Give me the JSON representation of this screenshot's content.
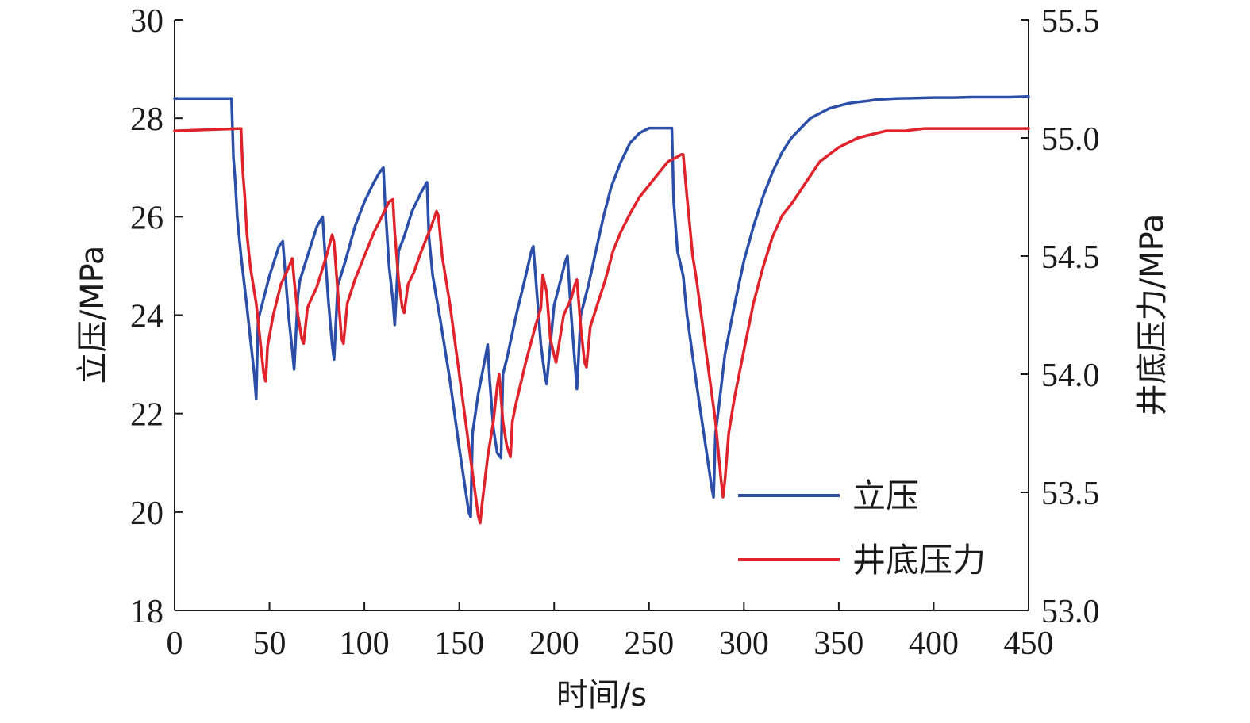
{
  "chart_data": {
    "type": "line",
    "xlabel": "时间/s",
    "ylabel_left": "立压/MPa",
    "ylabel_right": "井底压力/MPa",
    "xlim": [
      0,
      450
    ],
    "ylim_left": [
      18,
      30
    ],
    "ylim_right": [
      53.0,
      55.5
    ],
    "x_ticks": [
      "0",
      "50",
      "100",
      "150",
      "200",
      "250",
      "300",
      "350",
      "400",
      "450"
    ],
    "y_left_ticks": [
      "18",
      "20",
      "22",
      "24",
      "26",
      "28",
      "30"
    ],
    "y_right_ticks": [
      "53.0",
      "53.5",
      "54.0",
      "54.5",
      "55.0",
      "55.5"
    ],
    "grid": false,
    "legend_position": "bottom-right",
    "series": [
      {
        "name": "立压",
        "axis": "left",
        "color": "#2b4ea8",
        "x": [
          0,
          30,
          31,
          32,
          33,
          35,
          38,
          40,
          42,
          43,
          44,
          46,
          50,
          55,
          57,
          58,
          60,
          62,
          63,
          65,
          66,
          70,
          75,
          78,
          79,
          81,
          83,
          84,
          86,
          90,
          95,
          100,
          105,
          108,
          110,
          111,
          113,
          115,
          116,
          118,
          121,
          125,
          130,
          133,
          134,
          136,
          140,
          145,
          150,
          155,
          156,
          157,
          160,
          163,
          165,
          166,
          168,
          170,
          172,
          173,
          175,
          180,
          185,
          188,
          189,
          191,
          193,
          195,
          196,
          200,
          204,
          206,
          207,
          209,
          211,
          212,
          214,
          218,
          222,
          226,
          230,
          235,
          240,
          245,
          250,
          255,
          260,
          262,
          263,
          265,
          268,
          270,
          275,
          280,
          283,
          284,
          285,
          287,
          290,
          295,
          300,
          305,
          310,
          315,
          320,
          325,
          330,
          335,
          340,
          345,
          350,
          355,
          360,
          365,
          370,
          380,
          390,
          400,
          410,
          420,
          430,
          440,
          450
        ],
        "values": [
          28.4,
          28.4,
          27.2,
          26.7,
          26.0,
          25.2,
          24.2,
          23.5,
          22.8,
          22.3,
          23.9,
          24.2,
          24.8,
          25.4,
          25.5,
          25.0,
          24.0,
          23.3,
          22.9,
          24.4,
          24.7,
          25.2,
          25.8,
          26.0,
          25.4,
          24.3,
          23.4,
          23.1,
          24.6,
          25.1,
          25.8,
          26.3,
          26.7,
          26.9,
          27.0,
          26.2,
          25.0,
          24.3,
          23.8,
          25.3,
          25.6,
          26.1,
          26.5,
          26.7,
          25.6,
          24.8,
          23.9,
          22.7,
          21.3,
          20.0,
          19.9,
          21.6,
          22.4,
          23.0,
          23.4,
          22.7,
          21.7,
          21.2,
          21.1,
          22.8,
          23.1,
          24.0,
          24.8,
          25.3,
          25.4,
          24.4,
          23.4,
          22.8,
          22.6,
          24.2,
          24.8,
          25.1,
          25.2,
          24.0,
          23.0,
          22.5,
          24.0,
          24.6,
          25.3,
          26.0,
          26.6,
          27.1,
          27.5,
          27.7,
          27.8,
          27.8,
          27.8,
          27.8,
          26.3,
          25.3,
          24.8,
          24.0,
          22.6,
          21.3,
          20.5,
          20.3,
          21.6,
          22.2,
          23.2,
          24.2,
          25.1,
          25.8,
          26.4,
          26.9,
          27.3,
          27.6,
          27.8,
          28.0,
          28.1,
          28.2,
          28.25,
          28.3,
          28.33,
          28.35,
          28.38,
          28.4,
          28.41,
          28.42,
          28.42,
          28.43,
          28.43,
          28.43,
          28.44
        ]
      },
      {
        "name": "井底压力",
        "axis": "right",
        "color": "#e0232b",
        "x": [
          0,
          35,
          36,
          37,
          38,
          40,
          43,
          45,
          47,
          48,
          49,
          52,
          56,
          60,
          62,
          63,
          65,
          67,
          68,
          70,
          71,
          75,
          80,
          83,
          84,
          86,
          88,
          89,
          91,
          95,
          100,
          105,
          110,
          113,
          115,
          116,
          118,
          120,
          121,
          123,
          126,
          130,
          135,
          138,
          139,
          141,
          145,
          150,
          155,
          160,
          161,
          162,
          165,
          168,
          170,
          171,
          173,
          175,
          177,
          178,
          180,
          185,
          190,
          193,
          194,
          196,
          198,
          200,
          201,
          205,
          209,
          211,
          212,
          214,
          216,
          217,
          219,
          223,
          227,
          231,
          235,
          240,
          245,
          250,
          255,
          260,
          265,
          267,
          268,
          270,
          273,
          275,
          280,
          285,
          288,
          289,
          290,
          292,
          295,
          300,
          305,
          310,
          315,
          320,
          325,
          330,
          335,
          340,
          345,
          350,
          355,
          360,
          365,
          370,
          375,
          385,
          395,
          405,
          415,
          425,
          435,
          445,
          450
        ],
        "values": [
          55.03,
          55.04,
          54.85,
          54.75,
          54.6,
          54.45,
          54.3,
          54.15,
          54.0,
          53.97,
          54.12,
          54.25,
          54.38,
          54.45,
          54.49,
          54.4,
          54.25,
          54.15,
          54.13,
          54.28,
          54.3,
          54.37,
          54.5,
          54.59,
          54.56,
          54.35,
          54.15,
          54.13,
          54.3,
          54.4,
          54.5,
          54.6,
          54.68,
          54.73,
          54.74,
          54.6,
          54.4,
          54.28,
          54.26,
          54.38,
          54.43,
          54.52,
          54.62,
          54.69,
          54.67,
          54.5,
          54.3,
          54.0,
          53.7,
          53.4,
          53.37,
          53.45,
          53.65,
          53.8,
          53.95,
          54.0,
          53.8,
          53.7,
          53.65,
          53.8,
          53.88,
          54.05,
          54.2,
          54.28,
          54.42,
          54.35,
          54.15,
          54.08,
          54.05,
          54.25,
          54.32,
          54.38,
          54.4,
          54.2,
          54.05,
          54.03,
          54.2,
          54.3,
          54.4,
          54.52,
          54.6,
          54.68,
          54.75,
          54.8,
          54.85,
          54.9,
          54.92,
          54.93,
          54.93,
          54.75,
          54.5,
          54.4,
          54.1,
          53.8,
          53.55,
          53.48,
          53.55,
          53.75,
          53.9,
          54.1,
          54.3,
          54.45,
          54.58,
          54.67,
          54.72,
          54.78,
          54.84,
          54.9,
          54.93,
          54.96,
          54.98,
          55.0,
          55.01,
          55.02,
          55.03,
          55.03,
          55.04,
          55.04,
          55.04,
          55.04,
          55.04,
          55.04,
          55.04
        ]
      }
    ]
  }
}
